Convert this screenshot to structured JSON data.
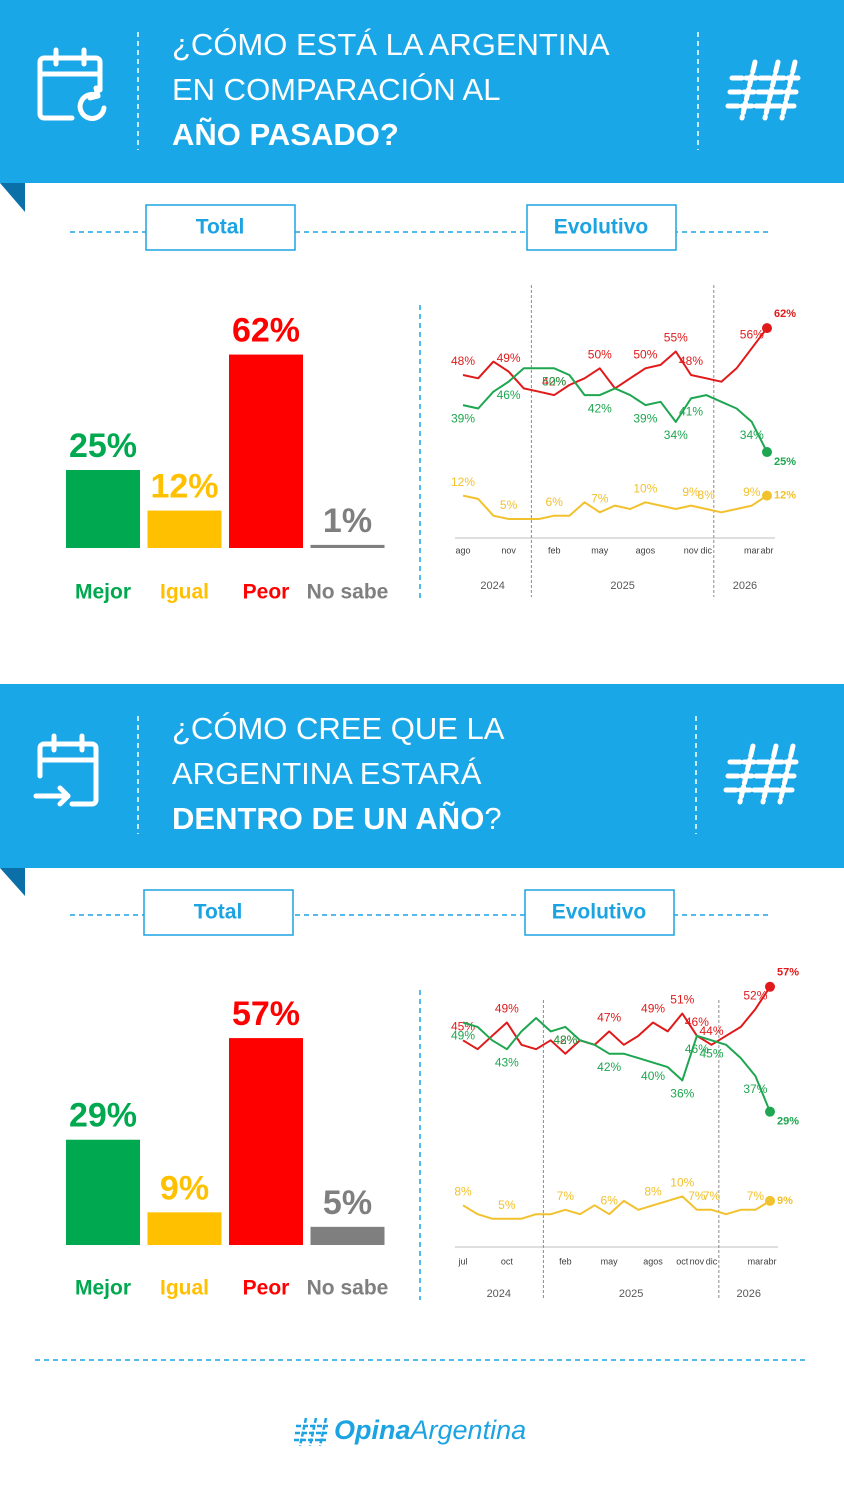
{
  "sections": [
    {
      "header": {
        "lines": [
          "¿CÓMO ESTÁ LA ARGENTINA",
          "EN COMPARACIÓN AL"
        ],
        "bold": "AÑO PASADO?"
      },
      "tabs": [
        "Total",
        "Evolutivo"
      ]
    },
    {
      "header": {
        "lines": [
          "¿CÓMO CREE QUE LA",
          "ARGENTINA ESTARÁ"
        ],
        "bold": "DENTRO DE UN AÑO",
        "tail": "?"
      },
      "tabs": [
        "Total",
        "Evolutivo"
      ]
    }
  ],
  "chart_data": [
    {
      "type": "bar",
      "categories": [
        "Mejor",
        "Igual",
        "Peor",
        "No sabe"
      ],
      "values": [
        25,
        12,
        62,
        1
      ],
      "value_labels": [
        "25%",
        "12%",
        "62%",
        "1%"
      ],
      "colors": [
        "#00a94f",
        "#ffc000",
        "#ff0000",
        "#7f7f7f"
      ]
    },
    {
      "type": "line",
      "categories": [
        "ago",
        null,
        null,
        "nov",
        null,
        null,
        "feb",
        null,
        null,
        "may",
        null,
        null,
        "agos",
        null,
        null,
        "nov",
        "dic",
        null,
        null,
        "mar",
        "abr"
      ],
      "years": [
        "2024",
        "2025",
        "2026"
      ],
      "series": [
        {
          "color": "#e01a1a",
          "values": [
            48,
            47,
            52,
            49,
            44,
            43,
            42,
            45,
            47,
            50,
            44,
            47,
            50,
            51,
            55,
            48,
            47,
            46,
            50,
            56,
            62
          ],
          "value_labels": [
            "48%",
            null,
            null,
            "49%",
            null,
            null,
            "42%",
            null,
            null,
            "50%",
            null,
            null,
            "50%",
            null,
            "55%",
            "48%",
            null,
            null,
            null,
            "56%",
            "62%"
          ]
        },
        {
          "color": "#1ea650",
          "values": [
            39,
            38,
            43,
            46,
            50,
            50,
            50,
            48,
            42,
            42,
            44,
            42,
            39,
            40,
            34,
            41,
            42,
            40,
            38,
            34,
            25
          ],
          "value_labels": [
            "39%",
            null,
            null,
            "46%",
            null,
            null,
            "50%",
            null,
            null,
            "42%",
            null,
            null,
            "39%",
            null,
            "34%",
            "41%",
            null,
            null,
            null,
            "34%",
            "25%"
          ]
        },
        {
          "color": "#f2c12e",
          "values": [
            12,
            11,
            6,
            5,
            5,
            5,
            6,
            6,
            10,
            7,
            9,
            8,
            10,
            9,
            8,
            9,
            8,
            7,
            8,
            9,
            12
          ],
          "value_labels": [
            "12%",
            null,
            null,
            "5%",
            null,
            null,
            "6%",
            null,
            null,
            "7%",
            null,
            null,
            "10%",
            null,
            null,
            "9%",
            "8%",
            null,
            null,
            "9%",
            "12%"
          ]
        }
      ]
    },
    {
      "type": "bar",
      "categories": [
        "Mejor",
        "Igual",
        "Peor",
        "No sabe"
      ],
      "values": [
        29,
        9,
        57,
        5
      ],
      "value_labels": [
        "29%",
        "9%",
        "57%",
        "5%"
      ],
      "colors": [
        "#00a94f",
        "#ffc000",
        "#ff0000",
        "#7f7f7f"
      ]
    },
    {
      "type": "line",
      "categories": [
        "jul",
        null,
        null,
        "oct",
        null,
        null,
        null,
        "feb",
        null,
        null,
        "may",
        null,
        null,
        "agos",
        null,
        "oct",
        "nov",
        "dic",
        null,
        null,
        "mar",
        "abr"
      ],
      "years": [
        "2024",
        "2025",
        "2026"
      ],
      "series": [
        {
          "color": "#e01a1a",
          "values": [
            45,
            43,
            46,
            49,
            44,
            43,
            45,
            42,
            45,
            44,
            47,
            44,
            46,
            49,
            47,
            51,
            46,
            44,
            46,
            48,
            52,
            57
          ],
          "value_labels": [
            "45%",
            null,
            null,
            "49%",
            null,
            null,
            null,
            "42%",
            null,
            null,
            "47%",
            null,
            null,
            "49%",
            null,
            "51%",
            "46%",
            "44%",
            null,
            null,
            "52%",
            "57%"
          ]
        },
        {
          "color": "#1ea650",
          "values": [
            49,
            48,
            45,
            43,
            47,
            50,
            47,
            48,
            45,
            44,
            42,
            42,
            41,
            40,
            39,
            36,
            46,
            45,
            44,
            41,
            37,
            29
          ],
          "value_labels": [
            "49%",
            null,
            null,
            "43%",
            null,
            null,
            null,
            "48%",
            null,
            null,
            "42%",
            null,
            null,
            "40%",
            null,
            "36%",
            "46%",
            "45%",
            null,
            null,
            "37%",
            "29%"
          ]
        },
        {
          "color": "#f2c12e",
          "values": [
            8,
            6,
            5,
            5,
            5,
            6,
            6,
            7,
            6,
            8,
            6,
            9,
            7,
            8,
            9,
            10,
            7,
            7,
            6,
            7,
            7,
            9
          ],
          "value_labels": [
            "8%",
            null,
            null,
            "5%",
            null,
            null,
            null,
            "7%",
            null,
            null,
            "6%",
            null,
            null,
            "8%",
            null,
            "10%",
            "7%",
            "7%",
            null,
            null,
            "7%",
            "9%"
          ]
        }
      ]
    }
  ],
  "footer": {
    "brand_bold": "Opina",
    "brand": "Argentina"
  }
}
